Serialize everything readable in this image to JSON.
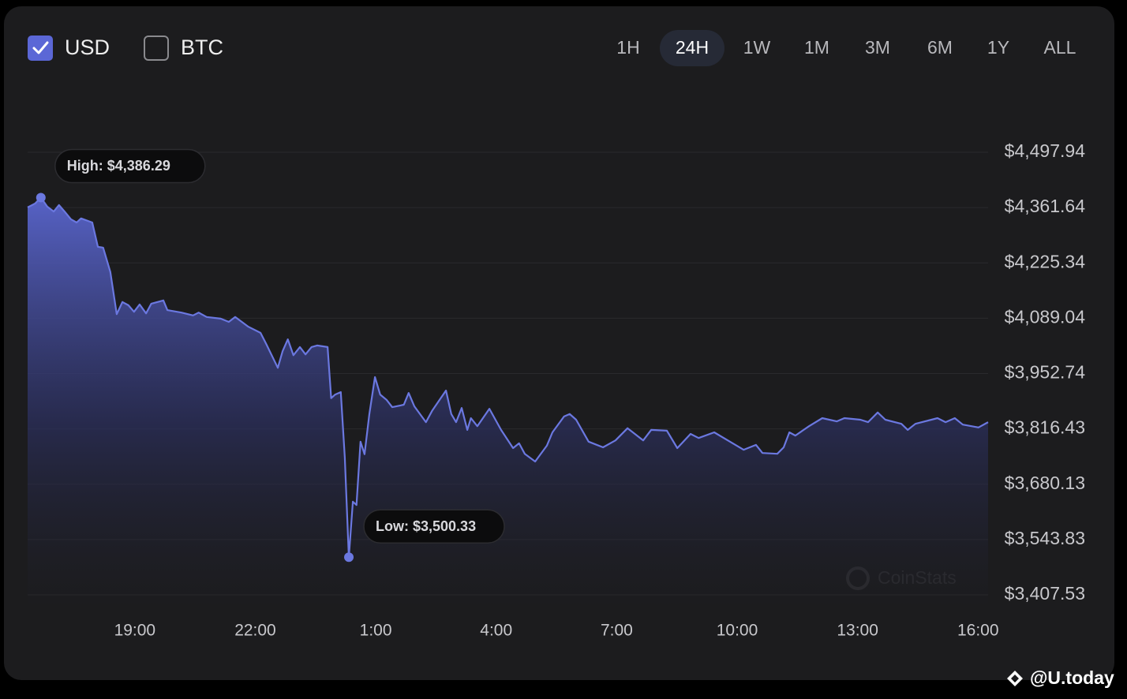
{
  "currency_toggles": [
    {
      "label": "USD",
      "checked": true
    },
    {
      "label": "BTC",
      "checked": false
    }
  ],
  "ranges": [
    {
      "label": "1H",
      "active": false
    },
    {
      "label": "24H",
      "active": true
    },
    {
      "label": "1W",
      "active": false
    },
    {
      "label": "1M",
      "active": false
    },
    {
      "label": "3M",
      "active": false
    },
    {
      "label": "6M",
      "active": false
    },
    {
      "label": "1Y",
      "active": false
    },
    {
      "label": "ALL",
      "active": false
    }
  ],
  "chart_data": {
    "type": "area",
    "color": "#6b78e0",
    "grid": true,
    "high_label": "High: $4,386.29",
    "low_label": "Low: $3,500.33",
    "watermark": "CoinStats",
    "x": [
      16.33,
      16.52,
      16.66,
      16.82,
      16.98,
      17.11,
      17.25,
      17.41,
      17.55,
      17.66,
      17.94,
      18.08,
      18.21,
      18.39,
      18.55,
      18.69,
      18.84,
      18.98,
      19.12,
      19.28,
      19.41,
      19.71,
      19.81,
      20.16,
      20.45,
      20.59,
      20.79,
      21.14,
      21.34,
      21.5,
      21.83,
      22.13,
      22.28,
      22.56,
      22.68,
      22.81,
      22.95,
      23.11,
      23.25,
      23.4,
      23.54,
      23.8,
      23.89,
      23.99,
      24.13,
      24.23,
      24.33,
      24.43,
      24.52,
      24.62,
      24.72,
      24.84,
      24.98,
      25.11,
      25.27,
      25.41,
      25.7,
      25.82,
      25.96,
      26.25,
      26.41,
      26.75,
      26.88,
      27.0,
      27.14,
      27.28,
      27.37,
      27.53,
      27.83,
      28.12,
      28.42,
      28.57,
      28.71,
      28.97,
      29.26,
      29.4,
      29.69,
      29.83,
      29.99,
      30.3,
      30.66,
      30.97,
      31.27,
      31.66,
      31.86,
      32.25,
      32.51,
      32.84,
      33.04,
      33.43,
      33.82,
      34.16,
      34.47,
      34.63,
      35.0,
      35.16,
      35.3,
      35.45,
      35.79,
      36.12,
      36.48,
      36.67,
      37.07,
      37.26,
      37.5,
      37.69,
      38.09,
      38.25,
      38.44,
      38.99,
      39.19,
      39.42,
      39.62,
      40.01,
      40.25
    ],
    "values": [
      4362,
      4372,
      4386.29,
      4364,
      4352,
      4368,
      4352,
      4333,
      4325,
      4335,
      4325,
      4265,
      4263,
      4203,
      4099,
      4129,
      4121,
      4105,
      4123,
      4101,
      4125,
      4133,
      4109,
      4103,
      4096,
      4103,
      4092,
      4088,
      4080,
      4092,
      4068,
      4053,
      4024,
      3967,
      4008,
      4037,
      3998,
      4018,
      4000,
      4018,
      4022,
      4018,
      3892,
      3901,
      3907,
      3746,
      3500.33,
      3637,
      3629,
      3785,
      3754,
      3853,
      3944,
      3901,
      3888,
      3870,
      3876,
      3905,
      3872,
      3833,
      3862,
      3911,
      3853,
      3833,
      3868,
      3814,
      3843,
      3823,
      3866,
      3814,
      3769,
      3781,
      3755,
      3736,
      3775,
      3808,
      3847,
      3853,
      3839,
      3785,
      3771,
      3788,
      3818,
      3788,
      3814,
      3812,
      3769,
      3804,
      3794,
      3808,
      3785,
      3765,
      3777,
      3757,
      3755,
      3771,
      3808,
      3800,
      3823,
      3843,
      3835,
      3843,
      3839,
      3833,
      3857,
      3839,
      3829,
      3814,
      3829,
      3843,
      3833,
      3843,
      3827,
      3820,
      3833
    ],
    "xlim": [
      16.33,
      40.25
    ],
    "ylim": [
      3366.7,
      4497.94
    ],
    "xticks": [
      {
        "value": 19,
        "label": "19:00"
      },
      {
        "value": 22,
        "label": "22:00"
      },
      {
        "value": 25,
        "label": "1:00"
      },
      {
        "value": 28,
        "label": "4:00"
      },
      {
        "value": 31,
        "label": "7:00"
      },
      {
        "value": 34,
        "label": "10:00"
      },
      {
        "value": 37,
        "label": "13:00"
      },
      {
        "value": 40,
        "label": "16:00"
      }
    ],
    "yticks": [
      {
        "value": 4497.94,
        "label": "$4,497.94"
      },
      {
        "value": 4361.64,
        "label": "$4,361.64"
      },
      {
        "value": 4225.34,
        "label": "$4,225.34"
      },
      {
        "value": 4089.04,
        "label": "$4,089.04"
      },
      {
        "value": 3952.74,
        "label": "$3,952.74"
      },
      {
        "value": 3816.43,
        "label": "$3,816.43"
      },
      {
        "value": 3680.13,
        "label": "$3,680.13"
      },
      {
        "value": 3543.83,
        "label": "$3,543.83"
      },
      {
        "value": 3407.53,
        "label": "$3,407.53"
      }
    ]
  },
  "footer": "@U.today"
}
